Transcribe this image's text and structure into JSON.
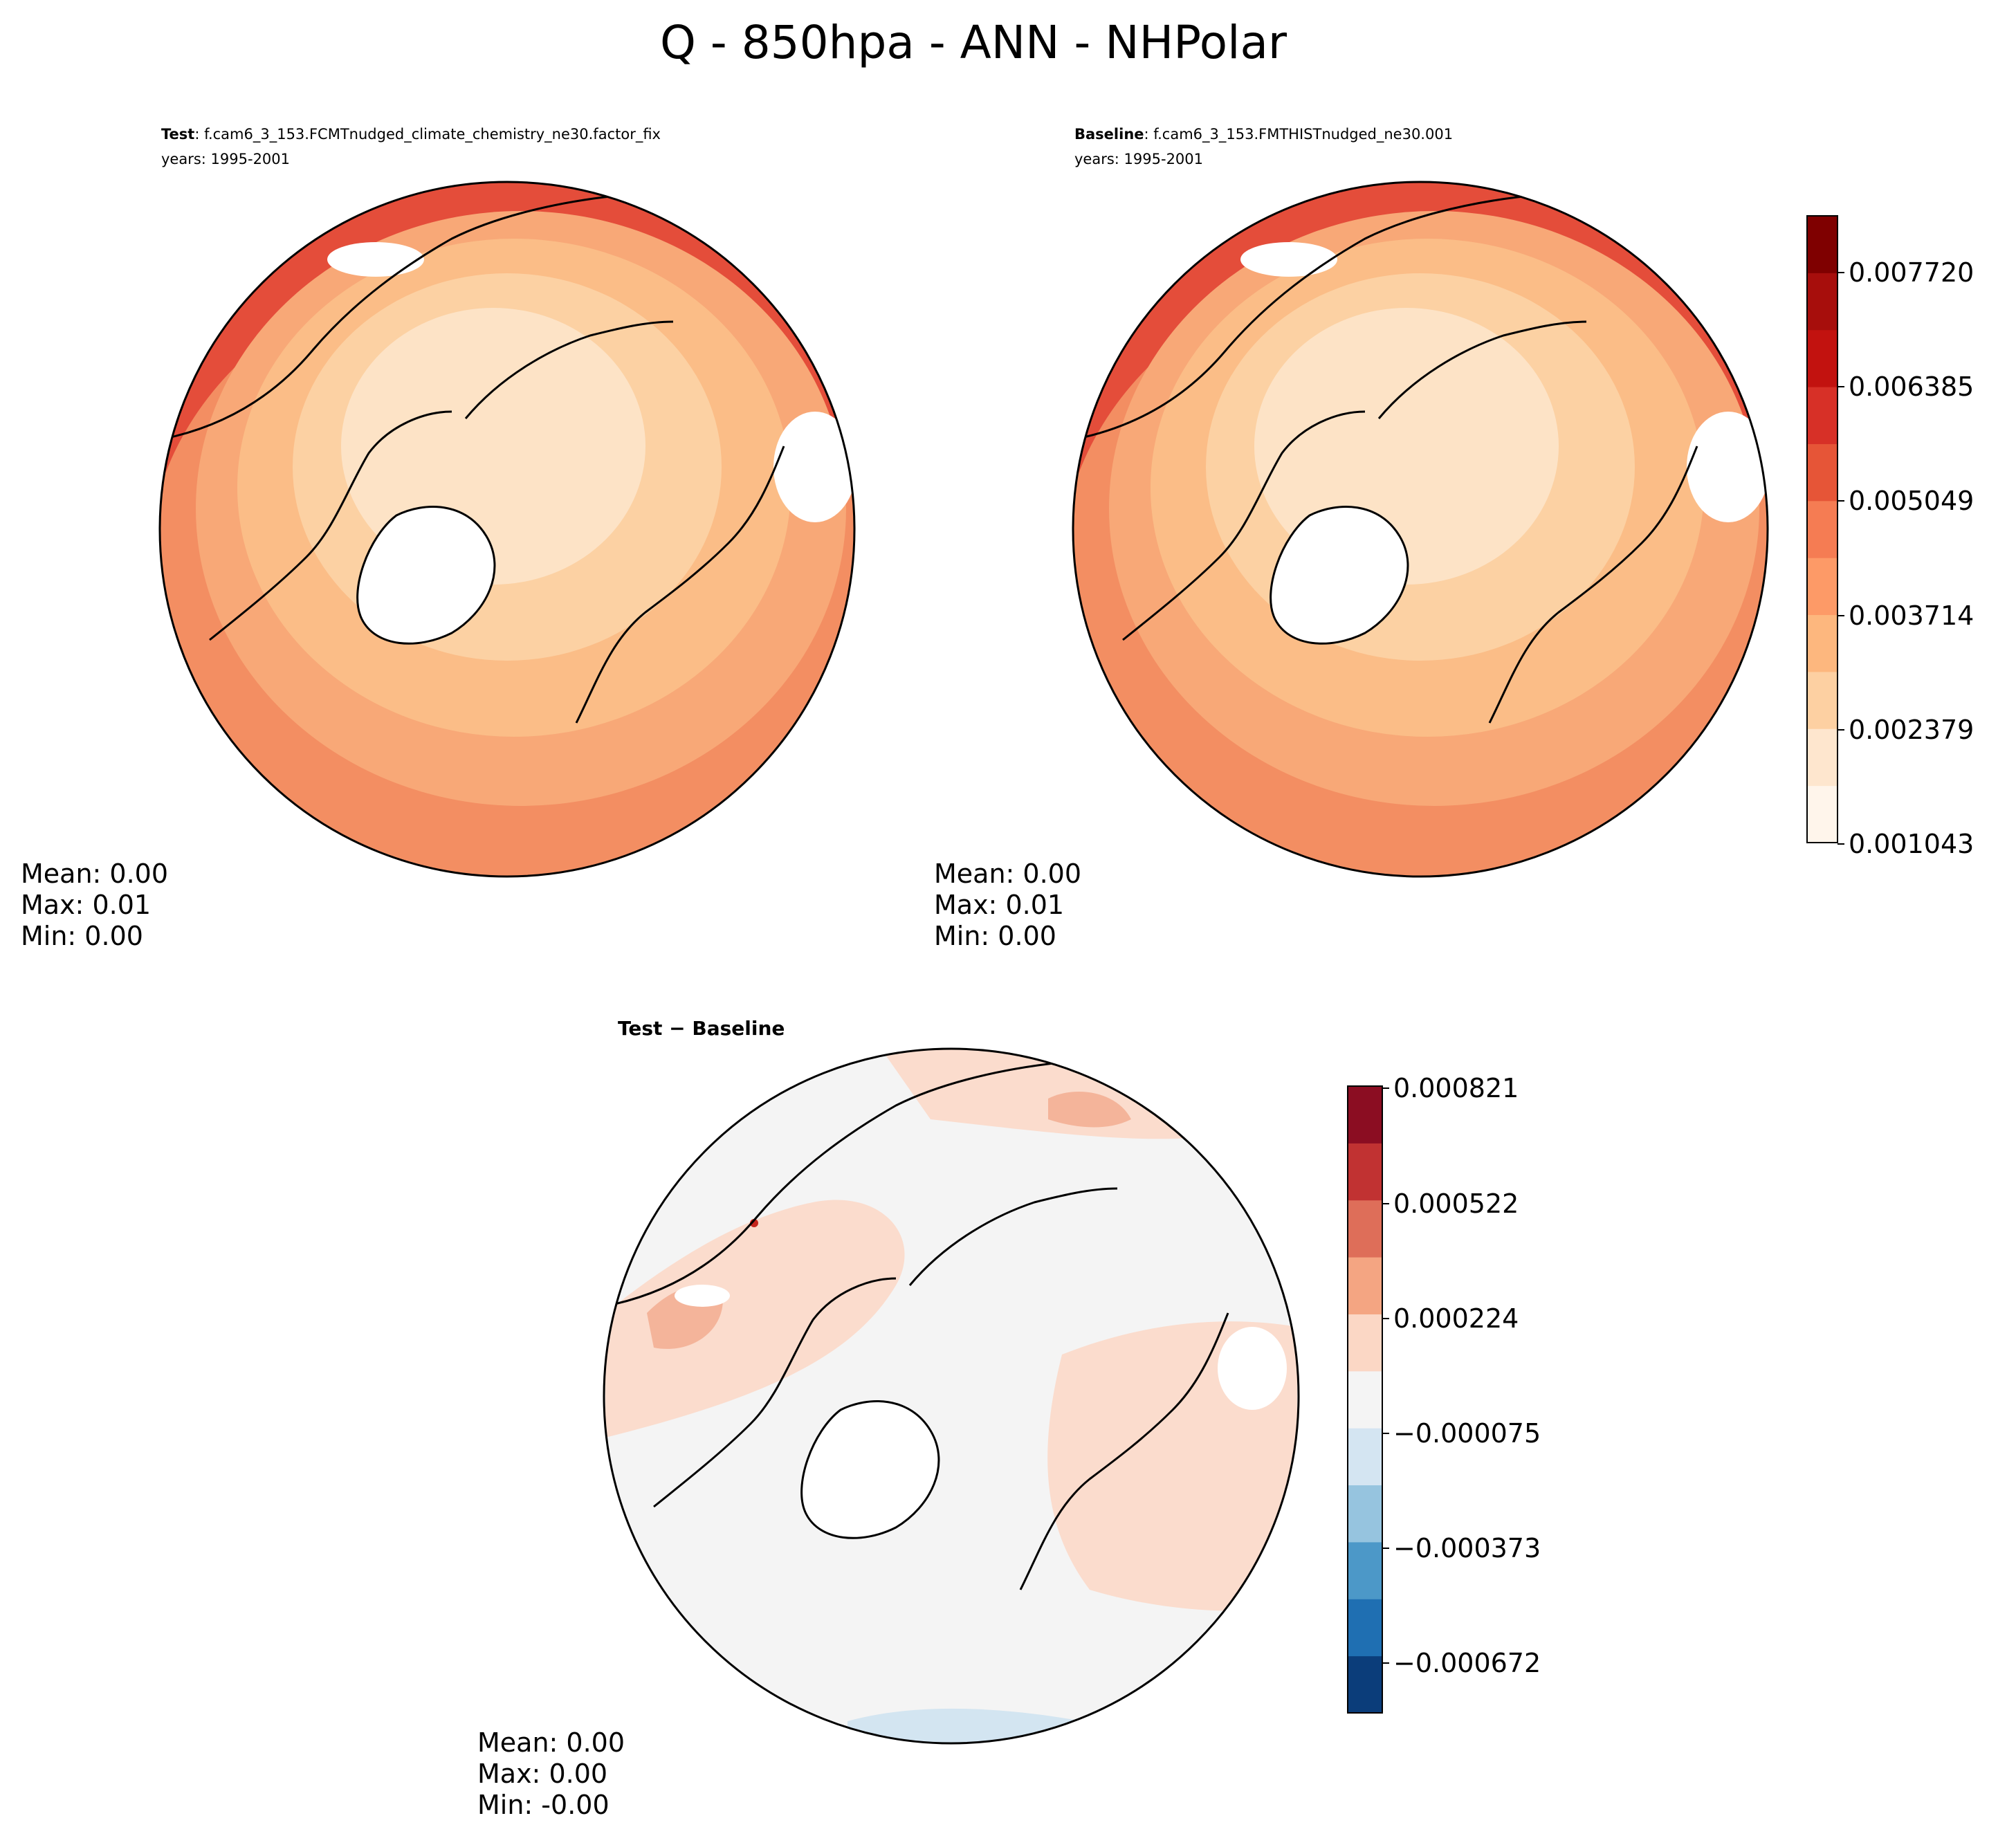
{
  "title": "Q - 850hpa - ANN - NHPolar",
  "panels": [
    {
      "id": "test",
      "label_bold": "Test",
      "label_rest": ": f.cam6_3_153.FCMTnudged_climate_chemistry_ne30.factor_fix",
      "years": "years: 1995-2001",
      "stats": {
        "mean": "Mean:  0.00",
        "max": "Max:  0.01",
        "min": "Min:  0.00"
      }
    },
    {
      "id": "baseline",
      "label_bold": "Baseline",
      "label_rest": ": f.cam6_3_153.FMTHISTnudged_ne30.001",
      "years": "years: 1995-2001",
      "stats": {
        "mean": "Mean:  0.00",
        "max": "Max:  0.01",
        "min": "Min:  0.00"
      }
    },
    {
      "id": "diff",
      "label_bold": "Test − Baseline",
      "stats": {
        "mean": "Mean:  0.00",
        "max": "Max:  0.00",
        "min": "Min: -0.00"
      }
    }
  ],
  "colorbar_main": {
    "ticks": [
      "0.007720",
      "0.006385",
      "0.005049",
      "0.003714",
      "0.002379",
      "0.001043"
    ],
    "colors": [
      "#fff5eb",
      "#fee6ce",
      "#fdd0a2",
      "#fdb77e",
      "#fd9a67",
      "#f57c53",
      "#e65537",
      "#d73027",
      "#c2120f",
      "#a70e0c",
      "#7f0000"
    ]
  },
  "colorbar_diff": {
    "ticks": [
      "0.000821",
      "0.000522",
      "0.000224",
      "−0.000075",
      "−0.000373",
      "−0.000672"
    ],
    "colors": [
      "#0b3d7a",
      "#1f6fb2",
      "#4c98c8",
      "#96c4df",
      "#d4e5f2",
      "#f4f4f4",
      "#fbd7c5",
      "#f4a582",
      "#de6e59",
      "#c13232",
      "#8b0d22"
    ]
  },
  "map_colors": {
    "field_levels": [
      "#fff2e2",
      "#fde3c6",
      "#fcd1a3",
      "#fbbd87",
      "#f8a877",
      "#f38e62",
      "#f16d4a",
      "#e44d3a"
    ],
    "diff_levels": [
      "#f4f4f4",
      "#fbdccd",
      "#f4b49a",
      "#d3e5f1",
      "#c5261d"
    ],
    "coast": "#000000"
  }
}
